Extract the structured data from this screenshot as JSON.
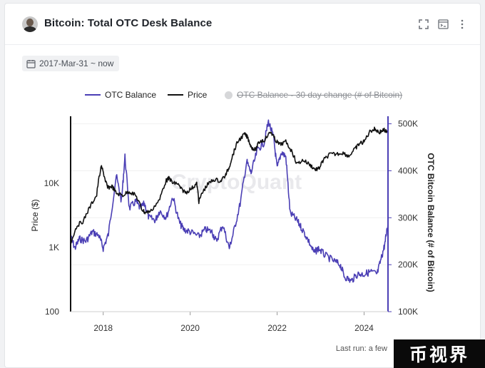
{
  "header": {
    "title": "Bitcoin: Total OTC Desk Balance",
    "icons": [
      "fullscreen-icon",
      "terminal-icon",
      "more-vertical-icon"
    ]
  },
  "filter": {
    "date_range": "2017-Mar-31 ~ now"
  },
  "legend": {
    "otc_balance": "OTC Balance",
    "price": "Price",
    "otc_change": "OTC Balance - 30 day change (# of Bitcoin)"
  },
  "watermark": "CryptoQuant",
  "footer": {
    "last_run": "Last run: a few"
  },
  "stamp": "币视界",
  "colors": {
    "otc_balance": "#4b3fb5",
    "price": "#111111",
    "axis_right": "#4b3fb5"
  },
  "chart_data": {
    "type": "line",
    "title": "Bitcoin: Total OTC Desk Balance",
    "x_ticks": [
      "2018",
      "2020",
      "2022",
      "2024"
    ],
    "y_left": {
      "label": "Price ($)",
      "scale": "log",
      "ticks": [
        "100",
        "1K",
        "10K"
      ],
      "range": [
        100,
        100000
      ]
    },
    "y_right": {
      "label": "OTC Bitcoin Balance (# of Bitcoin)",
      "ticks": [
        "100K",
        "200K",
        "300K",
        "400K",
        "500K"
      ],
      "range": [
        100000,
        510000
      ]
    },
    "x_range": [
      2017.25,
      2024.55
    ],
    "series": [
      {
        "name": "Price",
        "axis": "left",
        "points": [
          [
            2017.25,
            1100
          ],
          [
            2017.4,
            2200
          ],
          [
            2017.55,
            2600
          ],
          [
            2017.7,
            4300
          ],
          [
            2017.85,
            6500
          ],
          [
            2017.96,
            18000
          ],
          [
            2018.05,
            11000
          ],
          [
            2018.1,
            8500
          ],
          [
            2018.2,
            9000
          ],
          [
            2018.3,
            7000
          ],
          [
            2018.45,
            6500
          ],
          [
            2018.6,
            7500
          ],
          [
            2018.75,
            6400
          ],
          [
            2018.88,
            4000
          ],
          [
            2018.96,
            3500
          ],
          [
            2019.1,
            3700
          ],
          [
            2019.3,
            5500
          ],
          [
            2019.45,
            11000
          ],
          [
            2019.52,
            12000
          ],
          [
            2019.6,
            10000
          ],
          [
            2019.7,
            10000
          ],
          [
            2019.8,
            8000
          ],
          [
            2019.9,
            7200
          ],
          [
            2020.05,
            8500
          ],
          [
            2020.15,
            9800
          ],
          [
            2020.2,
            5200
          ],
          [
            2020.3,
            7500
          ],
          [
            2020.4,
            9500
          ],
          [
            2020.55,
            11500
          ],
          [
            2020.7,
            10800
          ],
          [
            2020.82,
            13500
          ],
          [
            2020.9,
            18000
          ],
          [
            2021.0,
            30000
          ],
          [
            2021.1,
            45000
          ],
          [
            2021.25,
            58000
          ],
          [
            2021.32,
            52000
          ],
          [
            2021.4,
            37000
          ],
          [
            2021.5,
            33000
          ],
          [
            2021.6,
            45000
          ],
          [
            2021.7,
            47000
          ],
          [
            2021.86,
            63000
          ],
          [
            2021.95,
            48000
          ],
          [
            2022.05,
            40000
          ],
          [
            2022.2,
            44000
          ],
          [
            2022.35,
            30000
          ],
          [
            2022.45,
            20000
          ],
          [
            2022.6,
            23000
          ],
          [
            2022.75,
            19500
          ],
          [
            2022.87,
            16500
          ],
          [
            2022.96,
            16800
          ],
          [
            2023.05,
            22000
          ],
          [
            2023.2,
            28000
          ],
          [
            2023.35,
            28500
          ],
          [
            2023.5,
            30000
          ],
          [
            2023.65,
            26500
          ],
          [
            2023.8,
            34500
          ],
          [
            2023.9,
            42000
          ],
          [
            2024.0,
            44000
          ],
          [
            2024.15,
            66000
          ],
          [
            2024.25,
            70000
          ],
          [
            2024.35,
            62000
          ],
          [
            2024.45,
            68000
          ],
          [
            2024.55,
            60000
          ]
        ]
      },
      {
        "name": "OTC Balance",
        "axis": "right",
        "points": [
          [
            2017.25,
            260000
          ],
          [
            2017.35,
            235000
          ],
          [
            2017.45,
            255000
          ],
          [
            2017.6,
            250000
          ],
          [
            2017.75,
            270000
          ],
          [
            2017.9,
            262000
          ],
          [
            2018.0,
            235000
          ],
          [
            2018.12,
            265000
          ],
          [
            2018.3,
            390000
          ],
          [
            2018.42,
            335000
          ],
          [
            2018.5,
            430000
          ],
          [
            2018.6,
            320000
          ],
          [
            2018.75,
            335000
          ],
          [
            2018.85,
            320000
          ],
          [
            2018.95,
            330000
          ],
          [
            2019.05,
            300000
          ],
          [
            2019.2,
            295000
          ],
          [
            2019.3,
            315000
          ],
          [
            2019.45,
            300000
          ],
          [
            2019.6,
            345000
          ],
          [
            2019.75,
            290000
          ],
          [
            2019.85,
            275000
          ],
          [
            2020.0,
            270000
          ],
          [
            2020.2,
            260000
          ],
          [
            2020.35,
            275000
          ],
          [
            2020.5,
            270000
          ],
          [
            2020.6,
            250000
          ],
          [
            2020.75,
            285000
          ],
          [
            2020.9,
            235000
          ],
          [
            2021.0,
            270000
          ],
          [
            2021.15,
            330000
          ],
          [
            2021.3,
            420000
          ],
          [
            2021.4,
            395000
          ],
          [
            2021.55,
            445000
          ],
          [
            2021.7,
            460000
          ],
          [
            2021.8,
            505000
          ],
          [
            2021.92,
            470000
          ],
          [
            2022.0,
            405000
          ],
          [
            2022.1,
            440000
          ],
          [
            2022.2,
            430000
          ],
          [
            2022.3,
            310000
          ],
          [
            2022.45,
            295000
          ],
          [
            2022.55,
            280000
          ],
          [
            2022.7,
            255000
          ],
          [
            2022.85,
            225000
          ],
          [
            2022.95,
            235000
          ],
          [
            2023.1,
            220000
          ],
          [
            2023.3,
            208000
          ],
          [
            2023.45,
            200000
          ],
          [
            2023.55,
            175000
          ],
          [
            2023.7,
            165000
          ],
          [
            2023.85,
            180000
          ],
          [
            2024.0,
            180000
          ],
          [
            2024.15,
            185000
          ],
          [
            2024.3,
            180000
          ],
          [
            2024.4,
            215000
          ],
          [
            2024.48,
            245000
          ],
          [
            2024.55,
            290000
          ]
        ]
      }
    ]
  }
}
